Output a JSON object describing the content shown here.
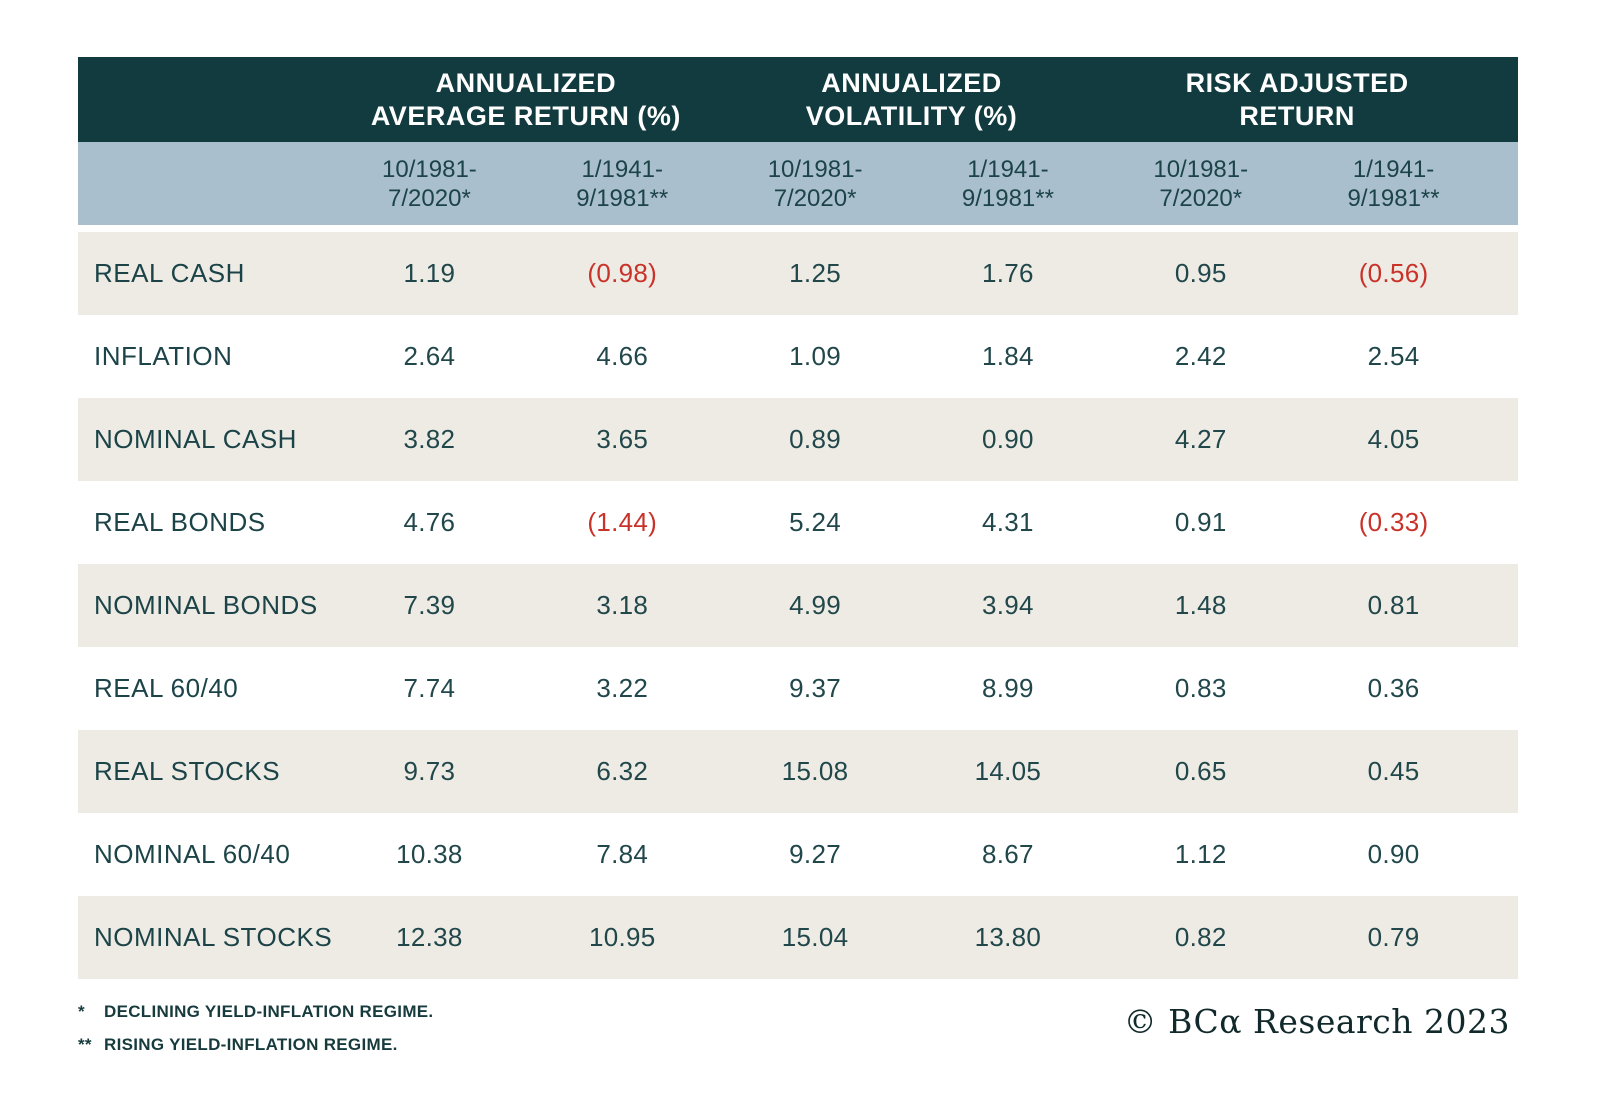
{
  "colors": {
    "header_bg": "#123B40",
    "subheader_bg": "#A9BFCD",
    "stripe_bg": "#EDEBE4",
    "text_dark_teal": "#1C4448",
    "negative_red": "#C93229",
    "logo_color": "#12292B"
  },
  "table": {
    "groups": [
      {
        "line1": "ANNUALIZED",
        "line2": "AVERAGE RETURN (%)"
      },
      {
        "line1": "ANNUALIZED",
        "line2": "VOLATILITY (%)"
      },
      {
        "line1": "RISK ADJUSTED",
        "line2": "RETURN"
      }
    ],
    "periods": [
      {
        "line1": "10/1981-",
        "line2": "7/2020*"
      },
      {
        "line1": "1/1941-",
        "line2": "9/1981**"
      },
      {
        "line1": "10/1981-",
        "line2": "7/2020*"
      },
      {
        "line1": "1/1941-",
        "line2": "9/1981**"
      },
      {
        "line1": "10/1981-",
        "line2": "7/2020*"
      },
      {
        "line1": "1/1941-",
        "line2": "9/1981**"
      }
    ],
    "rows": [
      {
        "label": "REAL CASH",
        "values": [
          "1.19",
          "(0.98)",
          "1.25",
          "1.76",
          "0.95",
          "(0.56)"
        ]
      },
      {
        "label": "INFLATION",
        "values": [
          "2.64",
          "4.66",
          "1.09",
          "1.84",
          "2.42",
          "2.54"
        ]
      },
      {
        "label": "NOMINAL CASH",
        "values": [
          "3.82",
          "3.65",
          "0.89",
          "0.90",
          "4.27",
          "4.05"
        ]
      },
      {
        "label": "REAL BONDS",
        "values": [
          "4.76",
          "(1.44)",
          "5.24",
          "4.31",
          "0.91",
          "(0.33)"
        ]
      },
      {
        "label": "NOMINAL BONDS",
        "values": [
          "7.39",
          "3.18",
          "4.99",
          "3.94",
          "1.48",
          "0.81"
        ]
      },
      {
        "label": "REAL 60/40",
        "values": [
          "7.74",
          "3.22",
          "9.37",
          "8.99",
          "0.83",
          "0.36"
        ]
      },
      {
        "label": "REAL STOCKS",
        "values": [
          "9.73",
          "6.32",
          "15.08",
          "14.05",
          "0.65",
          "0.45"
        ]
      },
      {
        "label": "NOMINAL 60/40",
        "values": [
          "10.38",
          "7.84",
          "9.27",
          "8.67",
          "1.12",
          "0.90"
        ]
      },
      {
        "label": "NOMINAL STOCKS",
        "values": [
          "12.38",
          "10.95",
          "15.04",
          "13.80",
          "0.82",
          "0.79"
        ]
      }
    ]
  },
  "footnotes": [
    {
      "marker": "*",
      "text": "DECLINING YIELD-INFLATION REGIME."
    },
    {
      "marker": "**",
      "text": "RISING YIELD-INFLATION REGIME."
    }
  ],
  "branding": {
    "copyright": "© BCα Research 2023"
  },
  "chart_data": {
    "type": "table",
    "title": "",
    "column_groups": [
      "ANNUALIZED AVERAGE RETURN (%)",
      "ANNUALIZED VOLATILITY (%)",
      "RISK ADJUSTED RETURN"
    ],
    "period_columns": [
      "10/1981-7/2020*",
      "1/1941-9/1981**"
    ],
    "columns": [
      "Annualized Average Return (%) 10/1981-7/2020*",
      "Annualized Average Return (%) 1/1941-9/1981**",
      "Annualized Volatility (%) 10/1981-7/2020*",
      "Annualized Volatility (%) 1/1941-9/1981**",
      "Risk Adjusted Return 10/1981-7/2020*",
      "Risk Adjusted Return 1/1941-9/1981**"
    ],
    "rows": [
      {
        "label": "REAL CASH",
        "values": [
          1.19,
          -0.98,
          1.25,
          1.76,
          0.95,
          -0.56
        ]
      },
      {
        "label": "INFLATION",
        "values": [
          2.64,
          4.66,
          1.09,
          1.84,
          2.42,
          2.54
        ]
      },
      {
        "label": "NOMINAL CASH",
        "values": [
          3.82,
          3.65,
          0.89,
          0.9,
          4.27,
          4.05
        ]
      },
      {
        "label": "REAL BONDS",
        "values": [
          4.76,
          -1.44,
          5.24,
          4.31,
          0.91,
          -0.33
        ]
      },
      {
        "label": "NOMINAL BONDS",
        "values": [
          7.39,
          3.18,
          4.99,
          3.94,
          1.48,
          0.81
        ]
      },
      {
        "label": "REAL 60/40",
        "values": [
          7.74,
          3.22,
          9.37,
          8.99,
          0.83,
          0.36
        ]
      },
      {
        "label": "REAL STOCKS",
        "values": [
          9.73,
          6.32,
          15.08,
          14.05,
          0.65,
          0.45
        ]
      },
      {
        "label": "NOMINAL 60/40",
        "values": [
          10.38,
          7.84,
          9.27,
          8.67,
          1.12,
          0.9
        ]
      },
      {
        "label": "NOMINAL STOCKS",
        "values": [
          12.38,
          10.95,
          15.04,
          13.8,
          0.82,
          0.79
        ]
      }
    ],
    "notes": [
      "* DECLINING YIELD-INFLATION REGIME.",
      "** RISING YIELD-INFLATION REGIME."
    ],
    "source": "© BCα Research 2023",
    "negative_values_shown_in": "red parentheses"
  }
}
